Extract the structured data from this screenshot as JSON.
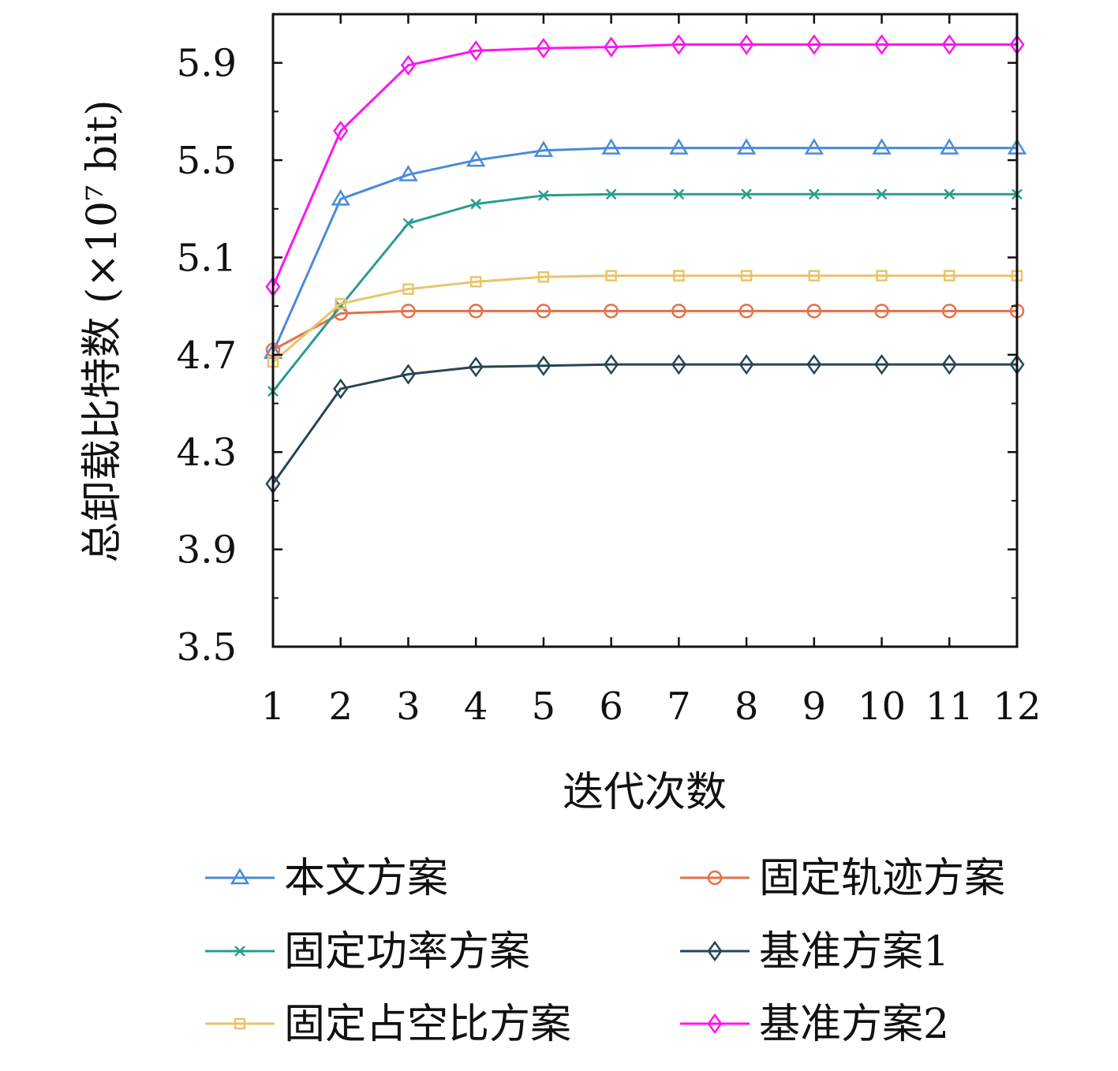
{
  "chart_data": {
    "type": "line",
    "xlabel": "迭代次数",
    "ylabel": "总卸载比特数 (×10⁷ bit)",
    "x": [
      1,
      2,
      3,
      4,
      5,
      6,
      7,
      8,
      9,
      10,
      11,
      12
    ],
    "xticks": [
      "1",
      "2",
      "3",
      "4",
      "5",
      "6",
      "7",
      "8",
      "9",
      "10",
      "11",
      "12"
    ],
    "xlim": [
      1,
      12
    ],
    "yticks": [
      "3.5",
      "3.9",
      "4.3",
      "4.7",
      "5.1",
      "5.5",
      "5.9"
    ],
    "ylim": [
      3.5,
      6.1
    ],
    "grid": false,
    "legend_position": "bottom, two columns",
    "series": [
      {
        "name": "本文方案",
        "color": "#4a8bd6",
        "marker": "triangle",
        "values": [
          4.71,
          5.34,
          5.44,
          5.5,
          5.54,
          5.55,
          5.55,
          5.55,
          5.55,
          5.55,
          5.55,
          5.55
        ]
      },
      {
        "name": "固定轨迹方案",
        "color": "#e6704a",
        "marker": "circle",
        "values": [
          4.72,
          4.87,
          4.88,
          4.88,
          4.88,
          4.88,
          4.88,
          4.88,
          4.88,
          4.88,
          4.88,
          4.88
        ]
      },
      {
        "name": "固定功率方案",
        "color": "#2a9d8f",
        "marker": "x",
        "values": [
          4.55,
          4.9,
          5.24,
          5.32,
          5.355,
          5.36,
          5.36,
          5.36,
          5.36,
          5.36,
          5.36,
          5.36
        ]
      },
      {
        "name": "基准方案1",
        "color": "#264653",
        "marker": "diamond",
        "values": [
          4.17,
          4.56,
          4.62,
          4.65,
          4.655,
          4.66,
          4.66,
          4.66,
          4.66,
          4.66,
          4.66,
          4.66
        ]
      },
      {
        "name": "固定占空比方案",
        "color": "#e9c46a",
        "marker": "square",
        "values": [
          4.67,
          4.91,
          4.97,
          5.0,
          5.02,
          5.025,
          5.025,
          5.025,
          5.025,
          5.025,
          5.025,
          5.025
        ]
      },
      {
        "name": "基准方案2",
        "color": "#ff14f0",
        "marker": "diamond",
        "values": [
          4.98,
          5.62,
          5.89,
          5.95,
          5.96,
          5.965,
          5.975,
          5.975,
          5.975,
          5.975,
          5.975,
          5.975
        ]
      }
    ]
  }
}
